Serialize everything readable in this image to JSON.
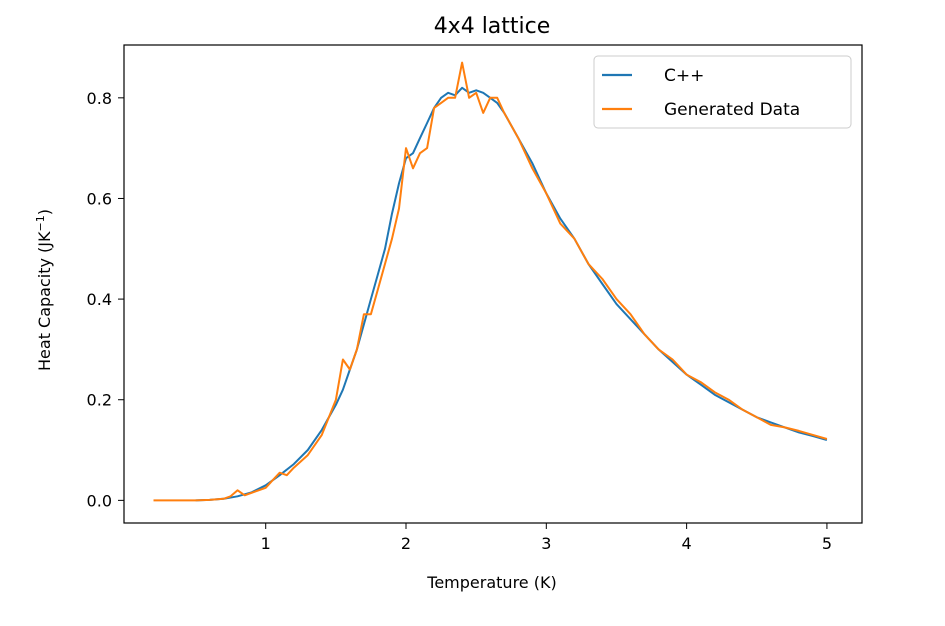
{
  "chart_data": {
    "type": "line",
    "title": "4x4 lattice",
    "xlabel": "Temperature (K)",
    "ylabel": "Heat Capacity (JK",
    "ylabel_sup": "−1",
    "ylabel_end": ")",
    "xlim": [
      -0.01,
      5.25
    ],
    "ylim": [
      -0.045,
      0.905
    ],
    "xticks": [
      1,
      2,
      3,
      4,
      5
    ],
    "yticks": [
      0.0,
      0.2,
      0.4,
      0.6,
      0.8
    ],
    "xtick_labels": [
      "1",
      "2",
      "3",
      "4",
      "5"
    ],
    "ytick_labels": [
      "0.0",
      "0.2",
      "0.4",
      "0.6",
      "0.8"
    ],
    "grid": false,
    "legend_position": "top-right",
    "series": [
      {
        "name": "C++",
        "color": "#1f77b4",
        "x": [
          0.5,
          0.6,
          0.7,
          0.8,
          0.9,
          1.0,
          1.1,
          1.2,
          1.3,
          1.4,
          1.5,
          1.55,
          1.6,
          1.65,
          1.7,
          1.75,
          1.8,
          1.85,
          1.9,
          1.95,
          2.0,
          2.05,
          2.1,
          2.15,
          2.2,
          2.25,
          2.3,
          2.35,
          2.4,
          2.45,
          2.5,
          2.55,
          2.6,
          2.65,
          2.7,
          2.8,
          2.9,
          3.0,
          3.1,
          3.2,
          3.3,
          3.4,
          3.5,
          3.6,
          3.7,
          3.8,
          3.9,
          4.0,
          4.1,
          4.2,
          4.3,
          4.4,
          4.5,
          4.6,
          4.7,
          4.8,
          4.9,
          5.0
        ],
        "y": [
          0.0,
          0.001,
          0.003,
          0.008,
          0.016,
          0.03,
          0.05,
          0.072,
          0.1,
          0.14,
          0.19,
          0.22,
          0.26,
          0.3,
          0.35,
          0.4,
          0.45,
          0.5,
          0.57,
          0.63,
          0.68,
          0.69,
          0.72,
          0.75,
          0.78,
          0.8,
          0.81,
          0.805,
          0.82,
          0.81,
          0.815,
          0.81,
          0.8,
          0.79,
          0.77,
          0.72,
          0.67,
          0.61,
          0.56,
          0.52,
          0.47,
          0.43,
          0.39,
          0.36,
          0.33,
          0.3,
          0.275,
          0.25,
          0.23,
          0.21,
          0.195,
          0.18,
          0.165,
          0.155,
          0.145,
          0.135,
          0.128,
          0.12
        ]
      },
      {
        "name": "Generated Data",
        "color": "#ff7f0e",
        "x": [
          0.2,
          0.3,
          0.4,
          0.5,
          0.6,
          0.7,
          0.75,
          0.8,
          0.85,
          0.9,
          1.0,
          1.05,
          1.1,
          1.15,
          1.2,
          1.3,
          1.4,
          1.5,
          1.55,
          1.6,
          1.65,
          1.7,
          1.75,
          1.8,
          1.85,
          1.9,
          1.95,
          2.0,
          2.05,
          2.1,
          2.15,
          2.2,
          2.25,
          2.3,
          2.35,
          2.4,
          2.45,
          2.5,
          2.55,
          2.6,
          2.65,
          2.7,
          2.8,
          2.9,
          3.0,
          3.1,
          3.2,
          3.3,
          3.4,
          3.5,
          3.6,
          3.7,
          3.8,
          3.9,
          4.0,
          4.1,
          4.2,
          4.3,
          4.4,
          4.5,
          4.6,
          4.7,
          4.8,
          4.9,
          5.0
        ],
        "y": [
          0.0,
          0.0,
          0.0,
          0.0,
          0.001,
          0.003,
          0.008,
          0.02,
          0.01,
          0.015,
          0.025,
          0.04,
          0.055,
          0.05,
          0.065,
          0.09,
          0.13,
          0.2,
          0.28,
          0.26,
          0.3,
          0.37,
          0.37,
          0.42,
          0.47,
          0.52,
          0.58,
          0.7,
          0.66,
          0.69,
          0.7,
          0.78,
          0.79,
          0.8,
          0.8,
          0.87,
          0.8,
          0.81,
          0.77,
          0.8,
          0.8,
          0.77,
          0.72,
          0.66,
          0.61,
          0.55,
          0.52,
          0.47,
          0.44,
          0.4,
          0.37,
          0.33,
          0.3,
          0.28,
          0.25,
          0.235,
          0.215,
          0.2,
          0.18,
          0.165,
          0.15,
          0.145,
          0.138,
          0.13,
          0.122
        ]
      }
    ]
  }
}
